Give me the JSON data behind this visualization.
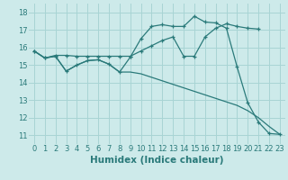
{
  "line_peaked_x": [
    0,
    1,
    2,
    3,
    4,
    5,
    6,
    7,
    8,
    9,
    10,
    11,
    12,
    13,
    14,
    15,
    16,
    17,
    18,
    19,
    20,
    21,
    22,
    23
  ],
  "line_peaked_y": [
    15.8,
    15.4,
    15.5,
    14.65,
    15.0,
    15.25,
    15.3,
    15.05,
    14.6,
    15.45,
    16.5,
    17.2,
    17.3,
    17.2,
    17.2,
    17.78,
    17.45,
    17.4,
    17.1,
    14.9,
    12.85,
    11.75,
    11.1,
    11.05
  ],
  "line_upper_x": [
    0,
    1,
    2,
    3,
    4,
    5,
    6,
    7,
    8,
    9,
    10,
    11,
    12,
    13,
    14,
    15,
    16,
    17,
    18,
    19,
    20,
    21
  ],
  "line_upper_y": [
    15.8,
    15.4,
    15.55,
    15.55,
    15.5,
    15.5,
    15.5,
    15.5,
    15.5,
    15.5,
    15.8,
    16.1,
    16.4,
    16.6,
    15.5,
    15.5,
    16.6,
    17.1,
    17.35,
    17.2,
    17.1,
    17.05
  ],
  "line_lower_x": [
    0,
    1,
    2,
    3,
    4,
    5,
    6,
    7,
    8,
    9,
    10,
    11,
    12,
    13,
    14,
    15,
    16,
    17,
    18,
    19,
    20,
    21,
    22,
    23
  ],
  "line_lower_y": [
    15.8,
    15.4,
    15.5,
    14.65,
    15.0,
    15.25,
    15.3,
    15.05,
    14.6,
    14.6,
    14.5,
    14.3,
    14.1,
    13.9,
    13.7,
    13.5,
    13.3,
    13.1,
    12.9,
    12.7,
    12.4,
    12.0,
    11.5,
    11.05
  ],
  "color": "#2a7a7a",
  "bg_color": "#cdeaea",
  "grid_color": "#a8d4d4",
  "xlabel": "Humidex (Indice chaleur)",
  "xlim": [
    -0.5,
    23.5
  ],
  "ylim": [
    10.5,
    18.5
  ],
  "yticks": [
    11,
    12,
    13,
    14,
    15,
    16,
    17,
    18
  ],
  "xticks": [
    0,
    1,
    2,
    3,
    4,
    5,
    6,
    7,
    8,
    9,
    10,
    11,
    12,
    13,
    14,
    15,
    16,
    17,
    18,
    19,
    20,
    21,
    22,
    23
  ],
  "xlabel_fontsize": 7.5,
  "tick_fontsize": 6
}
